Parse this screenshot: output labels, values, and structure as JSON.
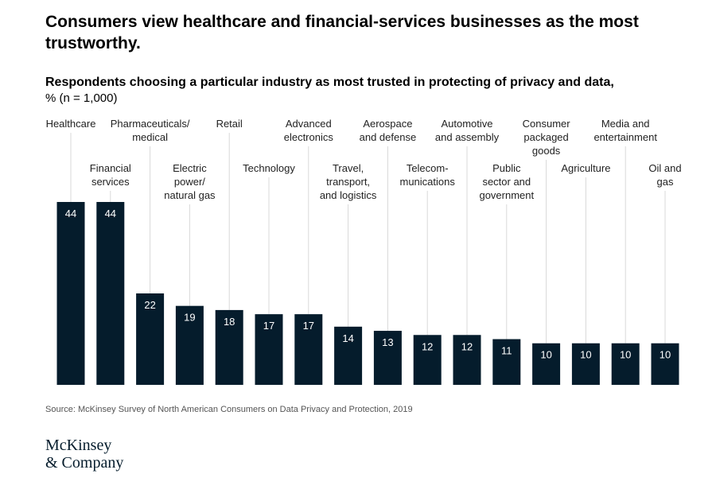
{
  "header": {
    "title": "Consumers view healthcare and financial-services businesses as the most trustworthy.",
    "subtitle": "Respondents choosing a particular industry as most trusted in protecting of privacy and data,",
    "unit": "% (n = 1,000)"
  },
  "chart_data": {
    "type": "bar",
    "categories": [
      "Healthcare",
      "Financial services",
      "Pharmaceuticals/ medical",
      "Electric power/ natural gas",
      "Retail",
      "Technology",
      "Advanced electronics",
      "Travel, transport, and logistics",
      "Aerospace and defense",
      "Telecom- munications",
      "Automotive and assembly",
      "Public sector and government",
      "Consumer packaged goods",
      "Agriculture",
      "Media and entertainment",
      "Oil and gas"
    ],
    "category_lines": [
      [
        "Healthcare"
      ],
      [
        "Financial",
        "services"
      ],
      [
        "Pharmaceuticals/",
        "medical"
      ],
      [
        "Electric",
        "power/",
        "natural gas"
      ],
      [
        "Retail"
      ],
      [
        "Technology"
      ],
      [
        "Advanced",
        "electronics"
      ],
      [
        "Travel,",
        "transport,",
        "and logistics"
      ],
      [
        "Aerospace",
        "and defense"
      ],
      [
        "Telecom-",
        "munications"
      ],
      [
        "Automotive",
        "and assembly"
      ],
      [
        "Public",
        "sector and",
        "government"
      ],
      [
        "Consumer",
        "packaged",
        "goods"
      ],
      [
        "Agriculture"
      ],
      [
        "Media and",
        "entertainment"
      ],
      [
        "Oil and",
        "gas"
      ]
    ],
    "values": [
      44,
      44,
      22,
      19,
      18,
      17,
      17,
      14,
      13,
      12,
      12,
      11,
      10,
      10,
      10,
      10
    ],
    "value_labels": [
      "44",
      "44",
      "22",
      "19",
      "18",
      "17",
      "17",
      "14",
      "13",
      "12",
      "12",
      "11",
      "10",
      "10",
      "10",
      "10"
    ],
    "ylim": [
      0,
      44
    ],
    "bar_color": "#051c2c",
    "label_color": "#ffffff",
    "leader_color": "#d9d9d9",
    "grid": false,
    "legend": false
  },
  "footer": {
    "source": "Source: McKinsey Survey of North American Consumers on Data Privacy and Protection, 2019",
    "logo_line1": "McKinsey",
    "logo_line2": "& Company"
  }
}
